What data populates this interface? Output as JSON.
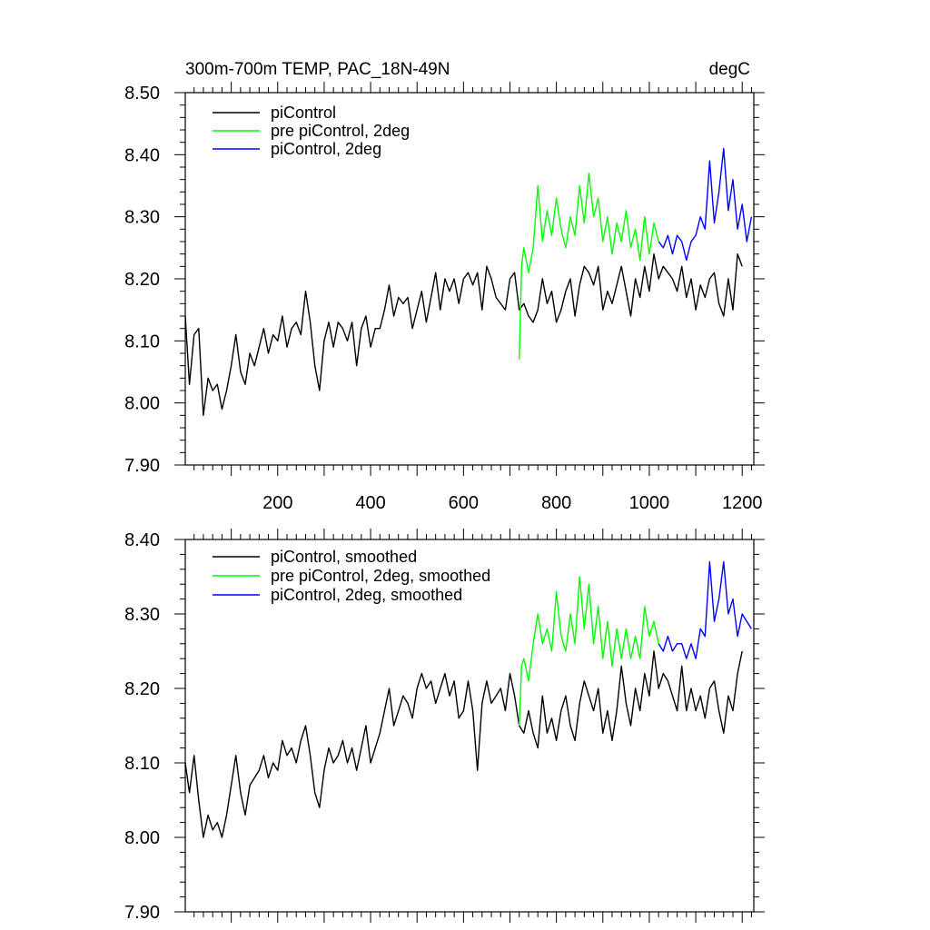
{
  "chart_data": [
    {
      "type": "line",
      "title": "300m-700m TEMP, PAC_18N-49N",
      "units": "degC",
      "xlim": [
        1,
        1225
      ],
      "ylim": [
        7.9,
        8.5
      ],
      "xticks": [
        200,
        400,
        600,
        800,
        1000,
        1200
      ],
      "xtick_labels": [
        "200",
        "400",
        "600",
        "800",
        "1000",
        "1200"
      ],
      "yticks": [
        7.9,
        8.0,
        8.1,
        8.2,
        8.3,
        8.4,
        8.5
      ],
      "ytick_labels": [
        "7.90",
        "8.00",
        "8.10",
        "8.20",
        "8.30",
        "8.40",
        "8.50"
      ],
      "legend_position": "top-left",
      "series": [
        {
          "name": "piControl",
          "color": "#000000",
          "x": [
            1,
            10,
            20,
            30,
            40,
            50,
            60,
            70,
            80,
            90,
            100,
            110,
            120,
            130,
            140,
            150,
            160,
            170,
            180,
            190,
            200,
            210,
            220,
            230,
            240,
            250,
            260,
            270,
            280,
            290,
            300,
            310,
            320,
            330,
            340,
            350,
            360,
            370,
            380,
            390,
            400,
            410,
            420,
            430,
            440,
            450,
            460,
            470,
            480,
            490,
            500,
            510,
            520,
            530,
            540,
            550,
            560,
            570,
            580,
            590,
            600,
            610,
            620,
            630,
            640,
            650,
            660,
            670,
            680,
            690,
            700,
            710,
            720,
            730,
            740,
            750,
            760,
            770,
            780,
            790,
            800,
            810,
            820,
            830,
            840,
            850,
            860,
            870,
            880,
            890,
            900,
            910,
            920,
            930,
            940,
            950,
            960,
            970,
            980,
            990,
            1000,
            1010,
            1020,
            1030,
            1040,
            1050,
            1060,
            1070,
            1080,
            1090,
            1100,
            1110,
            1120,
            1130,
            1140,
            1150,
            1160,
            1170,
            1180,
            1190,
            1200
          ],
          "values": [
            8.14,
            8.03,
            8.11,
            8.12,
            7.98,
            8.04,
            8.02,
            8.03,
            7.99,
            8.02,
            8.06,
            8.11,
            8.05,
            8.03,
            8.08,
            8.06,
            8.09,
            8.12,
            8.08,
            8.11,
            8.1,
            8.14,
            8.09,
            8.12,
            8.13,
            8.11,
            8.18,
            8.13,
            8.06,
            8.02,
            8.1,
            8.13,
            8.09,
            8.13,
            8.12,
            8.1,
            8.13,
            8.06,
            8.12,
            8.14,
            8.09,
            8.12,
            8.12,
            8.15,
            8.19,
            8.14,
            8.17,
            8.16,
            8.17,
            8.12,
            8.15,
            8.18,
            8.13,
            8.17,
            8.21,
            8.15,
            8.2,
            8.18,
            8.2,
            8.16,
            8.2,
            8.21,
            8.19,
            8.21,
            8.15,
            8.22,
            8.2,
            8.17,
            8.16,
            8.15,
            8.2,
            8.21,
            8.15,
            8.16,
            8.14,
            8.13,
            8.15,
            8.2,
            8.16,
            8.18,
            8.13,
            8.15,
            8.18,
            8.2,
            8.14,
            8.19,
            8.22,
            8.21,
            8.19,
            8.22,
            8.15,
            8.18,
            8.16,
            8.19,
            8.22,
            8.18,
            8.14,
            8.2,
            8.17,
            8.22,
            8.18,
            8.24,
            8.2,
            8.22,
            8.21,
            8.2,
            8.18,
            8.22,
            8.17,
            8.2,
            8.15,
            8.19,
            8.17,
            8.2,
            8.21,
            8.16,
            8.14,
            8.2,
            8.15,
            8.24,
            8.22
          ]
        },
        {
          "name": "pre piControl, 2deg",
          "color": "#00ff00",
          "x": [
            720,
            725,
            730,
            740,
            750,
            760,
            770,
            780,
            790,
            800,
            810,
            820,
            830,
            840,
            850,
            860,
            870,
            880,
            890,
            900,
            910,
            920,
            930,
            940,
            950,
            960,
            970,
            980,
            990,
            1000,
            1010,
            1020
          ],
          "values": [
            8.07,
            8.22,
            8.25,
            8.21,
            8.25,
            8.35,
            8.26,
            8.31,
            8.27,
            8.33,
            8.28,
            8.25,
            8.3,
            8.27,
            8.35,
            8.29,
            8.37,
            8.3,
            8.33,
            8.26,
            8.3,
            8.24,
            8.29,
            8.26,
            8.31,
            8.25,
            8.28,
            8.23,
            8.3,
            8.24,
            8.29,
            8.26
          ]
        },
        {
          "name": "piControl, 2deg",
          "color": "#0000ff",
          "x": [
            1020,
            1030,
            1040,
            1050,
            1060,
            1070,
            1080,
            1090,
            1100,
            1110,
            1120,
            1130,
            1140,
            1150,
            1160,
            1170,
            1180,
            1190,
            1200,
            1210,
            1220
          ],
          "values": [
            8.26,
            8.25,
            8.27,
            8.24,
            8.27,
            8.26,
            8.23,
            8.26,
            8.27,
            8.3,
            8.28,
            8.39,
            8.29,
            8.34,
            8.41,
            8.31,
            8.36,
            8.28,
            8.32,
            8.26,
            8.3
          ]
        }
      ]
    },
    {
      "type": "line",
      "xlim": [
        1,
        1225
      ],
      "ylim": [
        7.9,
        8.4
      ],
      "yticks": [
        7.9,
        8.0,
        8.1,
        8.2,
        8.3,
        8.4
      ],
      "ytick_labels": [
        "7.90",
        "8.00",
        "8.10",
        "8.20",
        "8.30",
        "8.40"
      ],
      "legend_position": "top-left",
      "series": [
        {
          "name": "piControl, smoothed",
          "color": "#000000",
          "x": [
            1,
            10,
            20,
            30,
            40,
            50,
            60,
            70,
            80,
            90,
            100,
            110,
            120,
            130,
            140,
            150,
            160,
            170,
            180,
            190,
            200,
            210,
            220,
            230,
            240,
            250,
            260,
            270,
            280,
            290,
            300,
            310,
            320,
            330,
            340,
            350,
            360,
            370,
            380,
            390,
            400,
            410,
            420,
            430,
            440,
            450,
            460,
            470,
            480,
            490,
            500,
            510,
            520,
            530,
            540,
            550,
            560,
            570,
            580,
            590,
            600,
            610,
            620,
            630,
            640,
            650,
            660,
            670,
            680,
            690,
            700,
            710,
            720,
            730,
            740,
            750,
            760,
            770,
            780,
            790,
            800,
            810,
            820,
            830,
            840,
            850,
            860,
            870,
            880,
            890,
            900,
            910,
            920,
            930,
            940,
            950,
            960,
            970,
            980,
            990,
            1000,
            1010,
            1020,
            1030,
            1040,
            1050,
            1060,
            1070,
            1080,
            1090,
            1100,
            1110,
            1120,
            1130,
            1140,
            1150,
            1160,
            1170,
            1180,
            1190,
            1200
          ],
          "values": [
            8.1,
            8.06,
            8.11,
            8.05,
            8.0,
            8.03,
            8.01,
            8.02,
            8.0,
            8.03,
            8.07,
            8.11,
            8.06,
            8.03,
            8.07,
            8.08,
            8.09,
            8.11,
            8.08,
            8.1,
            8.09,
            8.13,
            8.11,
            8.12,
            8.1,
            8.13,
            8.15,
            8.11,
            8.06,
            8.04,
            8.09,
            8.12,
            8.1,
            8.11,
            8.13,
            8.1,
            8.12,
            8.09,
            8.12,
            8.15,
            8.1,
            8.12,
            8.14,
            8.17,
            8.2,
            8.15,
            8.17,
            8.19,
            8.18,
            8.16,
            8.2,
            8.22,
            8.2,
            8.21,
            8.18,
            8.2,
            8.22,
            8.19,
            8.21,
            8.16,
            8.17,
            8.21,
            8.17,
            8.09,
            8.18,
            8.21,
            8.18,
            8.19,
            8.2,
            8.17,
            8.22,
            8.19,
            8.15,
            8.14,
            8.17,
            8.14,
            8.12,
            8.19,
            8.14,
            8.16,
            8.13,
            8.17,
            8.19,
            8.15,
            8.13,
            8.18,
            8.21,
            8.19,
            8.17,
            8.2,
            8.14,
            8.17,
            8.13,
            8.17,
            8.23,
            8.18,
            8.15,
            8.2,
            8.17,
            8.22,
            8.19,
            8.25,
            8.2,
            8.22,
            8.21,
            8.19,
            8.17,
            8.23,
            8.17,
            8.2,
            8.17,
            8.19,
            8.16,
            8.2,
            8.21,
            8.17,
            8.14,
            8.19,
            8.17,
            8.22,
            8.25
          ]
        },
        {
          "name": "pre piControl, 2deg, smoothed",
          "color": "#00ff00",
          "x": [
            720,
            725,
            730,
            740,
            750,
            760,
            770,
            780,
            790,
            800,
            810,
            820,
            830,
            840,
            850,
            860,
            870,
            880,
            890,
            900,
            910,
            920,
            930,
            940,
            950,
            960,
            970,
            980,
            990,
            1000,
            1010,
            1020
          ],
          "values": [
            8.15,
            8.23,
            8.24,
            8.21,
            8.26,
            8.3,
            8.26,
            8.28,
            8.25,
            8.33,
            8.27,
            8.25,
            8.3,
            8.26,
            8.35,
            8.28,
            8.34,
            8.26,
            8.31,
            8.24,
            8.29,
            8.23,
            8.28,
            8.24,
            8.28,
            8.24,
            8.27,
            8.24,
            8.31,
            8.27,
            8.29,
            8.26
          ]
        },
        {
          "name": "piControl, 2deg, smoothed",
          "color": "#0000ff",
          "x": [
            1020,
            1030,
            1040,
            1050,
            1060,
            1070,
            1080,
            1090,
            1100,
            1110,
            1120,
            1130,
            1140,
            1150,
            1160,
            1170,
            1180,
            1190,
            1200,
            1210,
            1220
          ],
          "values": [
            8.26,
            8.25,
            8.27,
            8.25,
            8.26,
            8.26,
            8.24,
            8.26,
            8.24,
            8.28,
            8.27,
            8.37,
            8.29,
            8.32,
            8.37,
            8.3,
            8.32,
            8.27,
            8.3,
            8.29,
            8.28
          ]
        }
      ]
    }
  ]
}
